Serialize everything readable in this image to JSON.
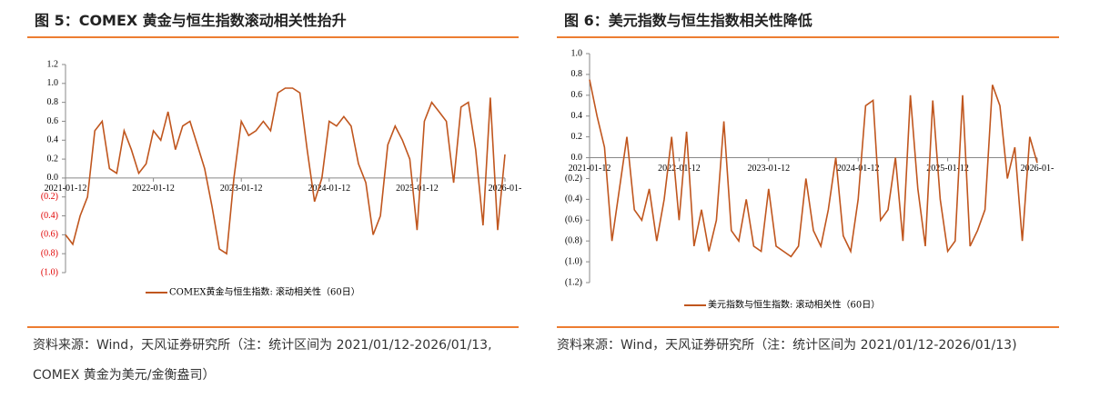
{
  "chart_data": [
    {
      "type": "line",
      "title": "图 5：COMEX 黄金与恒生指数滚动相关性抬升",
      "source": "资料来源：Wind，天风证券研究所（注：统计区间为 2021/01/12-2026/01/13, COMEX 黄金为美元/金衡盎司）",
      "categories": [
        "2021-01-12",
        null,
        null,
        null,
        null,
        null,
        null,
        null,
        null,
        null,
        null,
        null,
        "2022-01-12",
        null,
        null,
        null,
        null,
        null,
        null,
        null,
        null,
        null,
        null,
        null,
        "2023-01-12",
        null,
        null,
        null,
        null,
        null,
        null,
        null,
        null,
        null,
        null,
        null,
        "2024-01-12",
        null,
        null,
        null,
        null,
        null,
        null,
        null,
        null,
        null,
        null,
        null,
        "2025-01-12",
        null,
        null,
        null,
        null,
        null,
        null,
        null,
        null,
        null,
        null,
        null,
        "2026-01-"
      ],
      "series": [
        {
          "name": "COMEX黄金与恒生指数: 滚动相关性（60日）",
          "color": "#c0561e",
          "values": [
            -0.6,
            -0.7,
            -0.4,
            -0.2,
            0.5,
            0.6,
            0.1,
            0.05,
            0.5,
            0.3,
            0.05,
            0.15,
            0.5,
            0.4,
            0.7,
            0.3,
            0.55,
            0.6,
            0.35,
            0.1,
            -0.3,
            -0.75,
            -0.8,
            0.0,
            0.6,
            0.45,
            0.5,
            0.6,
            0.5,
            0.9,
            0.95,
            0.95,
            0.9,
            0.3,
            -0.25,
            0.0,
            0.6,
            0.55,
            0.65,
            0.55,
            0.15,
            -0.05,
            -0.6,
            -0.4,
            0.35,
            0.55,
            0.4,
            0.2,
            -0.55,
            0.6,
            0.8,
            0.7,
            0.6,
            -0.05,
            0.75,
            0.8,
            0.3,
            -0.5,
            0.85,
            -0.55,
            0.25
          ]
        }
      ],
      "ylim": [
        -1,
        1.2
      ],
      "yticks": [
        {
          "value": -1,
          "label": "(1.0)"
        },
        {
          "value": -0.8,
          "label": "(0.8)"
        },
        {
          "value": -0.6,
          "label": "(0.6)"
        },
        {
          "value": -0.4,
          "label": "(0.4)"
        },
        {
          "value": -0.2,
          "label": "(0.2)"
        },
        {
          "value": 0,
          "label": "0.0"
        },
        0.2,
        0.4,
        0.6,
        0.8,
        {
          "value": 1,
          "label": "1.0"
        },
        1.2
      ],
      "negative_tick_color": "#e00000",
      "grid": false
    },
    {
      "type": "line",
      "title": "图 6：美元指数与恒生指数相关性降低",
      "source": "资料来源：Wind，天风证券研究所（注：统计区间为 2021/01/12-2026/01/13)",
      "categories": [
        "2021-01-12",
        null,
        null,
        null,
        null,
        null,
        null,
        null,
        null,
        null,
        null,
        null,
        "2022-01-12",
        null,
        null,
        null,
        null,
        null,
        null,
        null,
        null,
        null,
        null,
        null,
        "2023-01-12",
        null,
        null,
        null,
        null,
        null,
        null,
        null,
        null,
        null,
        null,
        null,
        "2024-01-12",
        null,
        null,
        null,
        null,
        null,
        null,
        null,
        null,
        null,
        null,
        null,
        "2025-01-12",
        null,
        null,
        null,
        null,
        null,
        null,
        null,
        null,
        null,
        null,
        null,
        "2026-01-"
      ],
      "series": [
        {
          "name": "美元指数与恒生指数: 滚动相关性（60日）",
          "color": "#c0561e",
          "values": [
            0.75,
            0.4,
            0.1,
            -0.8,
            -0.3,
            0.2,
            -0.5,
            -0.6,
            -0.3,
            -0.8,
            -0.4,
            0.2,
            -0.6,
            0.25,
            -0.85,
            -0.5,
            -0.9,
            -0.6,
            0.35,
            -0.7,
            -0.8,
            -0.4,
            -0.85,
            -0.9,
            -0.3,
            -0.85,
            -0.9,
            -0.95,
            -0.85,
            -0.2,
            -0.7,
            -0.85,
            -0.5,
            0.0,
            -0.75,
            -0.9,
            -0.4,
            0.5,
            0.55,
            -0.6,
            -0.5,
            0.0,
            -0.8,
            0.6,
            -0.3,
            -0.85,
            0.55,
            -0.4,
            -0.9,
            -0.8,
            0.6,
            -0.85,
            -0.7,
            -0.5,
            0.7,
            0.5,
            -0.2,
            0.1,
            -0.8,
            0.2,
            -0.05
          ]
        }
      ],
      "ylim": [
        -1.2,
        1
      ],
      "yticks": [
        {
          "value": -1.2,
          "label": "(1.2)"
        },
        {
          "value": -1,
          "label": "(1.0)"
        },
        {
          "value": -0.8,
          "label": "(0.8)"
        },
        {
          "value": -0.6,
          "label": "(0.6)"
        },
        {
          "value": -0.4,
          "label": "(0.4)"
        },
        {
          "value": -0.2,
          "label": "(0.2)"
        },
        {
          "value": 0,
          "label": "0.0"
        },
        0.2,
        0.4,
        0.6,
        0.8,
        {
          "value": 1,
          "label": "1.0"
        }
      ],
      "negative_tick_color": "#000000",
      "grid": false
    }
  ]
}
